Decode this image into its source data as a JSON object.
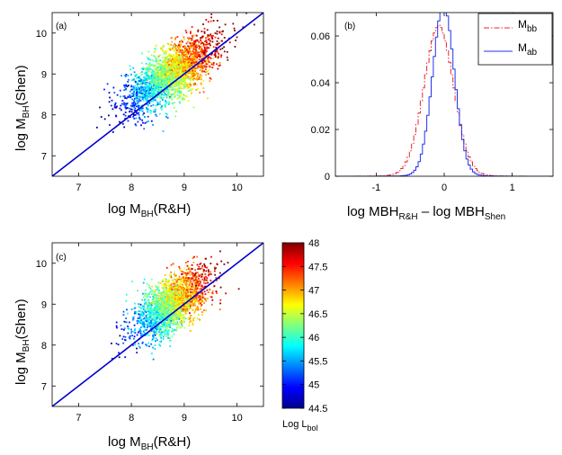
{
  "colors": {
    "one_to_one": "#0000cc",
    "hist_bb": "#e8262a",
    "hist_ab": "#2233ee",
    "colormap": "jet"
  },
  "chart_data": [
    {
      "type": "scatter",
      "panel_label": "(a)",
      "xlabel_main": "log M",
      "xlabel_sub": "BH",
      "xlabel_tail": "(R&H)",
      "ylabel_main": "log M",
      "ylabel_sub": "BH",
      "ylabel_tail": "(Shen)",
      "xlim": [
        6.5,
        10.5
      ],
      "ylim": [
        6.5,
        10.5
      ],
      "xticks": [
        "7",
        "8",
        "9",
        "10"
      ],
      "yticks": [
        "7",
        "8",
        "9",
        "10"
      ],
      "line": {
        "x": [
          6.5,
          10.5
        ],
        "y": [
          6.5,
          10.5
        ],
        "label": "one-to-one"
      },
      "point_count": 2600,
      "color_by": "Log L_bol"
    },
    {
      "type": "line",
      "panel_label": "(b)",
      "xlabel_main": "log MBH",
      "xlabel_sub1": "R&H",
      "xlabel_mid": " – log MBH",
      "xlabel_sub2": "Shen",
      "xlim": [
        -1.6,
        1.6
      ],
      "ylim": [
        0,
        0.07
      ],
      "xticks": [
        "-1",
        "0",
        "1"
      ],
      "xtick_values": [
        -1,
        0,
        1
      ],
      "yticks": [
        "0",
        "0.02",
        "0.04",
        "0.06"
      ],
      "ytick_values": [
        0,
        0.02,
        0.04,
        0.06
      ],
      "series": [
        {
          "name": "M",
          "sub": "bb",
          "style": "dash-dot",
          "peak_x": -0.08,
          "peak_y": 0.061,
          "width": 0.22
        },
        {
          "name": "M",
          "sub": "ab",
          "style": "solid",
          "peak_x": -0.01,
          "peak_y": 0.07,
          "width": 0.16
        }
      ],
      "legend": "top-right"
    },
    {
      "type": "scatter",
      "panel_label": "(c)",
      "xlabel_main": "log M",
      "xlabel_sub": "BH",
      "xlabel_tail": "(R&H)",
      "ylabel_main": "log M",
      "ylabel_sub": "BH",
      "ylabel_tail": "(Shen)",
      "xlim": [
        6.5,
        10.5
      ],
      "ylim": [
        6.5,
        10.5
      ],
      "xticks": [
        "7",
        "8",
        "9",
        "10"
      ],
      "yticks": [
        "7",
        "8",
        "9",
        "10"
      ],
      "line": {
        "x": [
          6.5,
          10.5
        ],
        "y": [
          6.5,
          10.5
        ],
        "label": "one-to-one"
      },
      "point_count": 2200,
      "color_by": "Log L_bol"
    },
    {
      "type": "heatmap",
      "role": "colorbar",
      "range": [
        44.5,
        48
      ],
      "ticks": [
        "48",
        "47.5",
        "47",
        "46.5",
        "46",
        "45.5",
        "45",
        "44.5"
      ],
      "tick_values": [
        48,
        47.5,
        47,
        46.5,
        46,
        45.5,
        45,
        44.5
      ],
      "label_main": "Log L",
      "label_sub": "bol"
    }
  ]
}
